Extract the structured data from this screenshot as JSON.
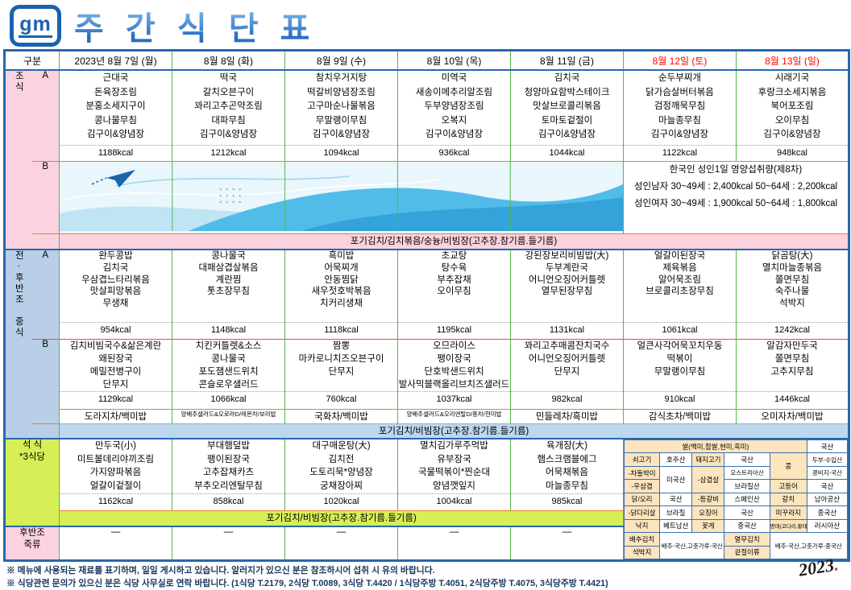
{
  "header": {
    "logo": "gm",
    "title": "주 간 식 단 표"
  },
  "corner_label": "구분",
  "days": [
    "2023년 8월 7일 (월)",
    "8월 8일 (화)",
    "8월 9일 (수)",
    "8월 10일 (목)",
    "8월 11일 (금)",
    "8월 12일 (토)",
    "8월 13일 (일)"
  ],
  "breakfast": {
    "label": "조식",
    "a_label": "A",
    "b_label": "B",
    "a_menus": [
      [
        "근대국",
        "돈육장조림",
        "분홍소세지구이",
        "콩나물무침",
        "김구이&양념장"
      ],
      [
        "떡국",
        "갈치오븐구이",
        "꽈리고추곤약조림",
        "대파무침",
        "김구이&양념장"
      ],
      [
        "참치우거지탕",
        "떡갈비양념장조림",
        "고구마순나물볶음",
        "무말랭이무침",
        "김구이&양념장"
      ],
      [
        "미역국",
        "새송이메추리알조림",
        "두부양념장조림",
        "오복지",
        "김구이&양념장"
      ],
      [
        "김치국",
        "청양마요함박스테이크",
        "맛살브로콜리볶음",
        "토마토겉절이",
        "김구이&양념장"
      ],
      [
        "순두부찌개",
        "닭가슴살버터볶음",
        "검정깨묵무침",
        "마늘종무침",
        "김구이&양념장"
      ],
      [
        "시래기국",
        "후랑크소세지볶음",
        "북어포조림",
        "오이무침",
        "김구이&양념장"
      ]
    ],
    "a_kcals": [
      "1188kcal",
      "1212kcal",
      "1094kcal",
      "936kcal",
      "1044kcal",
      "1122kcal",
      "948kcal"
    ],
    "nutrition": {
      "title": "한국인 성인1일 영양섭취량(제8차)",
      "male": "성인남자 30~49세 : 2,400kcal    50~64세 : 2,200kcal",
      "female": "성인여자 30~49세 : 1,900kcal    50~64세 : 1,800kcal"
    },
    "band": "포기김치/김치볶음/숭늉/비빔장(고추장.참기름.들기름)"
  },
  "lunch": {
    "label": "전·후반조 중식",
    "a_label": "A",
    "b_label": "B",
    "a_menus": [
      [
        "완두콩밥",
        "김치국",
        "우삼겹느타리볶음",
        "맛살피망볶음",
        "무생채"
      ],
      [
        "콩나물국",
        "대패삼겹살볶음",
        "계란찜",
        "톳초장무침"
      ],
      [
        "흑미밥",
        "어묵찌개",
        "안동찜닭",
        "새우젓호박볶음",
        "치커리생채"
      ],
      [
        "초교탕",
        "탕수육",
        "부추잡채",
        "오이무침"
      ],
      [
        "강된장보리비빔밥(大)",
        "두부계란국",
        "어니언오징어커틀렛",
        "열무된장무침"
      ],
      [
        "얼갈이된장국",
        "제육볶음",
        "알어묵조림",
        "브로콜리초장무침"
      ],
      [
        "닭곰탕(大)",
        "멸치마늘종볶음",
        "쫄면무침",
        "숙주나물",
        "석박지"
      ]
    ],
    "a_kcals": [
      "954kcal",
      "1148kcal",
      "1118kcal",
      "1195kcal",
      "1131kcal",
      "1061kcal",
      "1242kcal"
    ],
    "b_menus": [
      [
        "김치비빔국수&삶은계란",
        "왜된장국",
        "메밀전병구이",
        "단무지"
      ],
      [
        "치킨커틀렛&소스",
        "콩나물국",
        "포도잼샌드위치",
        "콘슬로우샐러드"
      ],
      [
        "짬뽕",
        "마카로니치즈오븐구이",
        "단무지"
      ],
      [
        "오므라이스",
        "팽이장국",
        "단호박샌드위치",
        "발사믹블랙올리브치즈샐러드"
      ],
      [
        "꽈리고추매콤잔치국수",
        "어니언오징어커틀렛",
        "단무지"
      ],
      [
        "얼큰사각어묵꼬치우동",
        "떡볶이",
        "무말랭이무침"
      ],
      [
        "알감자만두국",
        "쫄면무침",
        "고추지무침"
      ]
    ],
    "b_kcals": [
      "1129kcal",
      "1066kcal",
      "760kcal",
      "1037kcal",
      "982kcal",
      "910kcal",
      "1446kcal"
    ],
    "tea": [
      "도라지차/백미밥",
      "양배추샐러드&오로라D/레몬차/보리밥",
      "국화차/백미밥",
      "양배추샐러드&오리엔탈D/홍차/현미밥",
      "민들레차/흑미밥",
      "감식초차/백미밥",
      "오미자차/백미밥"
    ],
    "band": "포기김치/비빔장(고추장.참기름.들기름)"
  },
  "dinner": {
    "label": "석 식\n*3식당",
    "menus": [
      [
        "만두국(小)",
        "미트볼데리야끼조림",
        "가지양파볶음",
        "얼갈이겉절이"
      ],
      [
        "부대햄덮밥",
        "팽이된장국",
        "고추잡채카츠",
        "부추오리엔탈무침"
      ],
      [
        "대구매운탕(大)",
        "김치전",
        "도토리묵*양념장",
        "궁채장아찌"
      ],
      [
        "멸치김가루주먹밥",
        "유부장국",
        "국물떡볶이*찐순대",
        "양념깻잎지"
      ],
      [
        "육개장(大)",
        "햄스크램블에그",
        "어묵채볶음",
        "마늘종무침"
      ]
    ],
    "kcals": [
      "1162kcal",
      "858kcal",
      "1020kcal",
      "1004kcal",
      "985kcal"
    ],
    "band": "포기김치/비빔장(고추장.참기름.들기름)"
  },
  "porridge": {
    "label": "후반조\n죽류",
    "values": [
      "—",
      "—",
      "—",
      "—",
      "—"
    ]
  },
  "origin": {
    "rows": [
      [
        "쌀(백미,찹쌀,현미,흑미)",
        "국산"
      ],
      [
        "쇠고기",
        "호주산",
        "돼지고기",
        "국산",
        "콩",
        "두부-수입산"
      ],
      [
        "-차돌박이",
        "미국산",
        "-삼겹살",
        "오스트리아산",
        "콩비지-국산"
      ],
      [
        "-우삼겹",
        "브라질산",
        "고등어",
        "국산"
      ],
      [
        "닭/오리",
        "국산",
        "-등갈비",
        "스페인산",
        "갈치",
        "남아공산"
      ],
      [
        "-닭다리살",
        "브라질",
        "오징어",
        "국산",
        "미꾸라지",
        "중국산"
      ],
      [
        "낙지",
        "베트남산",
        "꽃게",
        "중국산",
        "명태(코다리,황태)",
        "러시아산"
      ],
      [
        "배추김치",
        "배추-국산,고춧가루-국산",
        "열무김치",
        "배추-국산,고춧가루-중국산"
      ],
      [
        "석박지",
        "겉절이류"
      ]
    ]
  },
  "footnotes": [
    "※ 메뉴에 사용되는 재료를 표기하며, 일일 게시하고 있습니다. 알러지가 있으신 분은 참조하시어 섭취 시 유의 바랍니다.",
    "※ 식당관련 문의가 있으신 분은 식당 사무실로 연락 바랍니다. (1식당 T.2179, 2식당 T.0089, 3식당 T.4420 / 1식당주방 T.4051, 2식당주방 T.4075, 3식당주방 T.4421)"
  ],
  "signature": "2023",
  "colors": {
    "accent_blue": "#2867ae",
    "line_green": "#54b948",
    "line_orange": "#ed7d31",
    "bg_pink": "#fbd2e0",
    "bg_blue": "#b9cfe8",
    "bg_lime": "#d7ef56",
    "weekend_red": "#ff0000",
    "origin_tan": "#fce5bd"
  }
}
